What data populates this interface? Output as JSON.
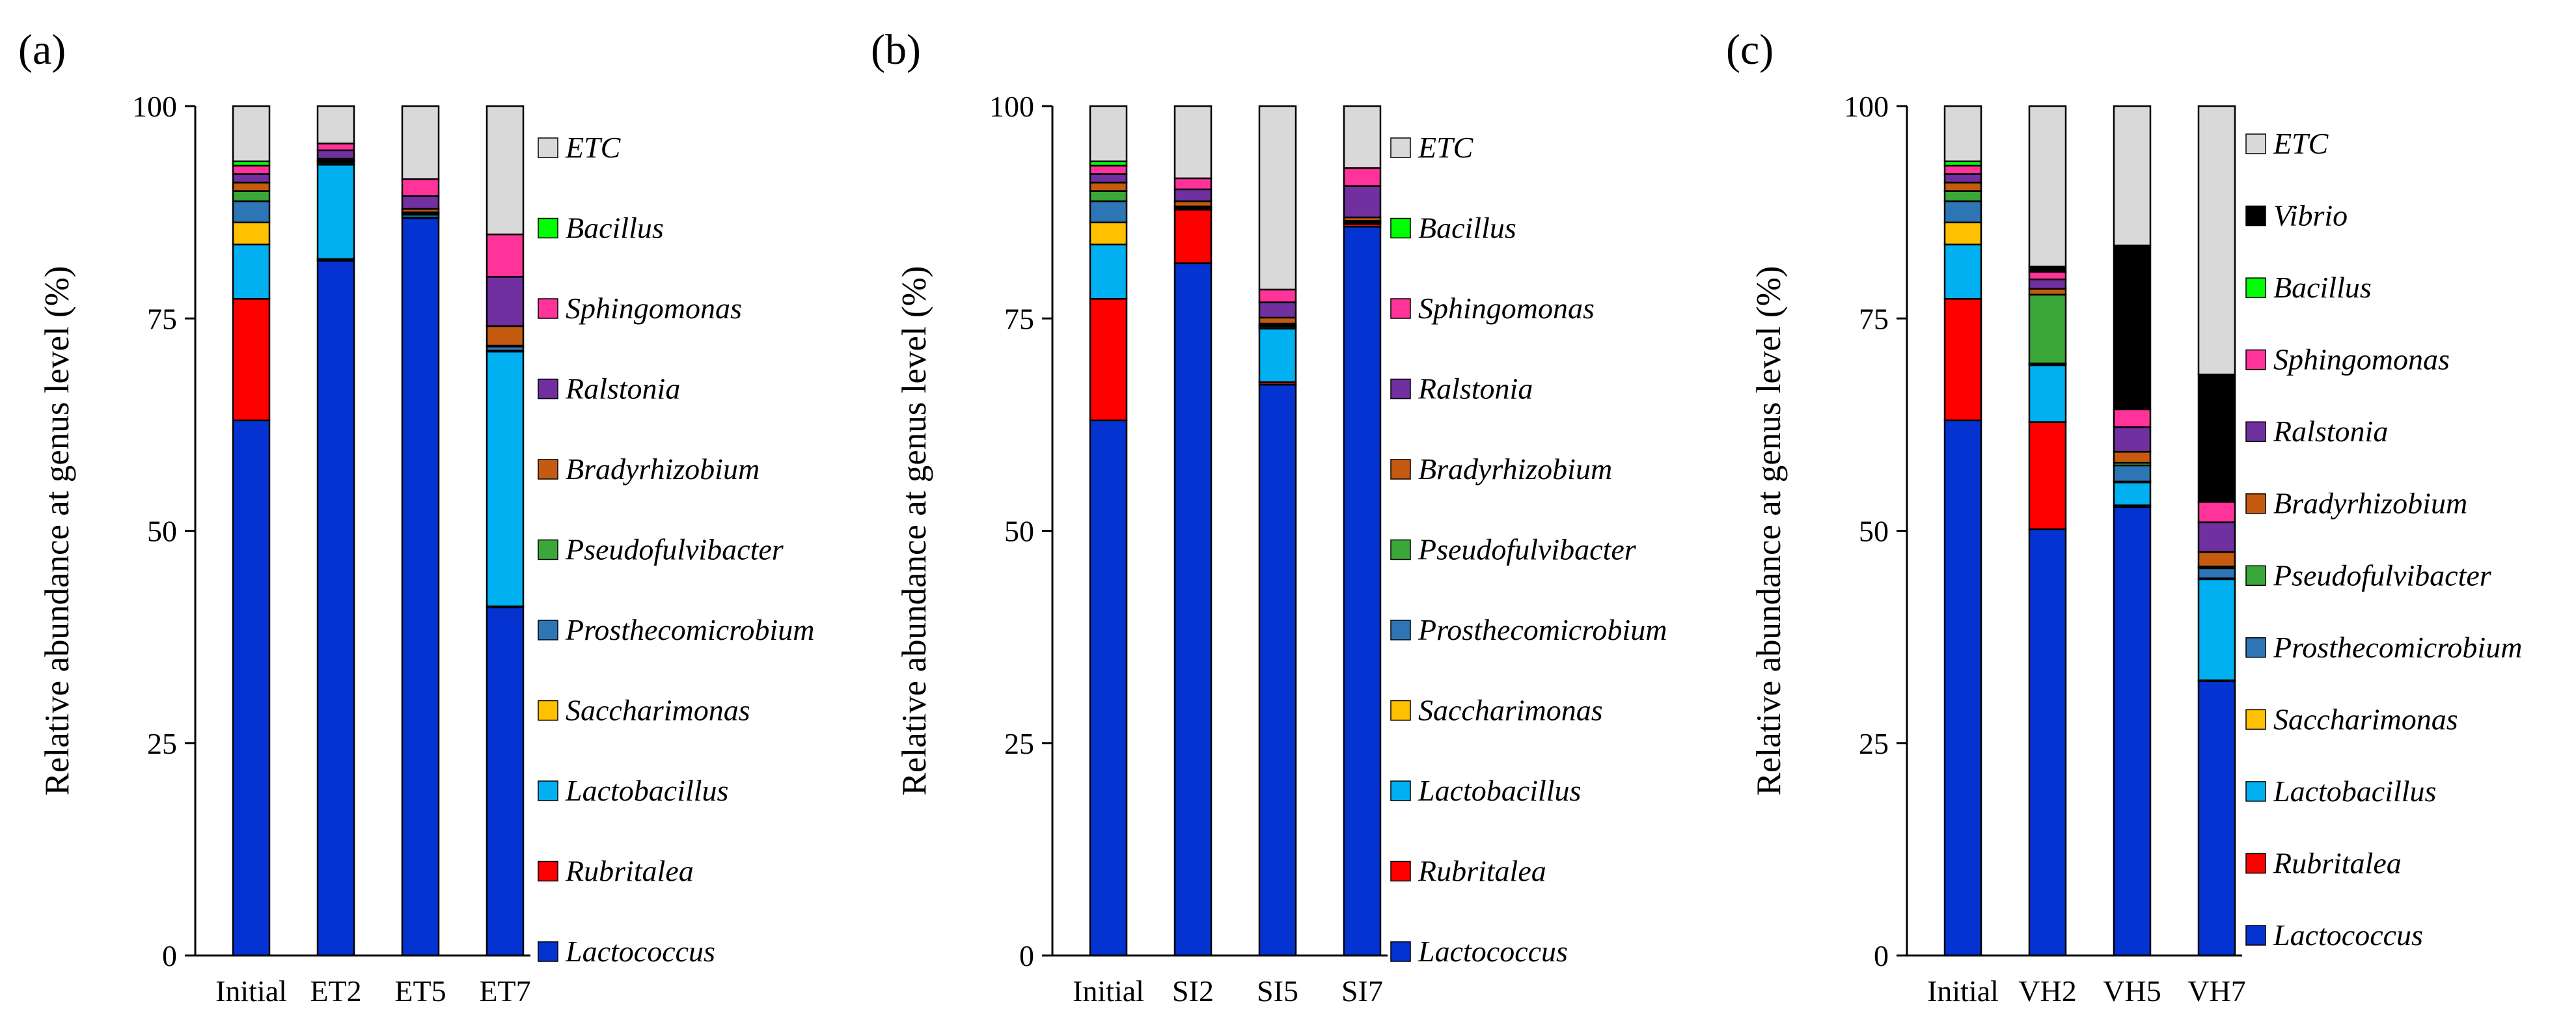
{
  "figure": "Relative abundance at genus level stacked bar charts",
  "colors": {
    "Lactococcus": "#0433d1",
    "Rubritalea": "#ff0000",
    "Lactobacillus": "#00b0f0",
    "Saccharimonas": "#ffc000",
    "Prosthecomicrobium": "#2e75b6",
    "Pseudofulvibacter": "#3aa838",
    "Bradyrhizobium": "#c55a11",
    "Ralstonia": "#7030a0",
    "Sphingomonas": "#ff3399",
    "Bacillus": "#00ff00",
    "Vibrio": "#000000",
    "ETC": "#d9d9d9"
  },
  "chart_data": [
    {
      "type": "bar",
      "stacked": true,
      "panel_label": "(a)",
      "title": "",
      "xlabel": "",
      "ylabel": "Relative abundance at genus level (%)",
      "ylim": [
        0,
        100
      ],
      "yticks": [
        "0",
        "25",
        "50",
        "75",
        "100"
      ],
      "categories": [
        "Initial",
        "ET2",
        "ET5",
        "ET7"
      ],
      "legend_title": "",
      "legend": [
        "ETC",
        "Bacillus",
        "Sphingomonas",
        "Ralstonia",
        "Bradyrhizobium",
        "Pseudofulvibacter",
        "Prosthecomicrobium",
        "Saccharimonas",
        "Lactobacillus",
        "Rubritalea",
        "Lactococcus"
      ],
      "series": [
        {
          "name": "Lactococcus",
          "values": [
            63.0,
            81.8,
            86.8,
            41.0
          ]
        },
        {
          "name": "Rubritalea",
          "values": [
            14.3,
            0.2,
            0.1,
            0.1
          ]
        },
        {
          "name": "Lactobacillus",
          "values": [
            6.4,
            11.1,
            0.3,
            30.0
          ]
        },
        {
          "name": "Saccharimonas",
          "values": [
            2.6,
            0.2,
            0.1,
            0.1
          ]
        },
        {
          "name": "Prosthecomicrobium",
          "values": [
            2.5,
            0.2,
            0.1,
            0.5
          ]
        },
        {
          "name": "Pseudofulvibacter",
          "values": [
            1.2,
            0.1,
            0.1,
            0.1
          ]
        },
        {
          "name": "Bradyrhizobium",
          "values": [
            1.0,
            0.2,
            0.4,
            2.3
          ]
        },
        {
          "name": "Ralstonia",
          "values": [
            1.0,
            1.0,
            1.5,
            5.8
          ]
        },
        {
          "name": "Sphingomonas",
          "values": [
            1.0,
            0.8,
            2.0,
            5.0
          ]
        },
        {
          "name": "Bacillus",
          "values": [
            0.5,
            0.0,
            0.0,
            0.0
          ]
        },
        {
          "name": "ETC",
          "values": [
            6.5,
            4.4,
            8.6,
            15.1
          ]
        }
      ]
    },
    {
      "type": "bar",
      "stacked": true,
      "panel_label": "(b)",
      "title": "",
      "xlabel": "",
      "ylabel": "Relative abundance at genus level (%)",
      "ylim": [
        0,
        100
      ],
      "yticks": [
        "0",
        "25",
        "50",
        "75",
        "100"
      ],
      "categories": [
        "Initial",
        "SI2",
        "SI5",
        "SI7"
      ],
      "legend_title": "",
      "legend": [
        "ETC",
        "Bacillus",
        "Sphingomonas",
        "Ralstonia",
        "Bradyrhizobium",
        "Pseudofulvibacter",
        "Prosthecomicrobium",
        "Saccharimonas",
        "Lactobacillus",
        "Rubritalea",
        "Lactococcus"
      ],
      "series": [
        {
          "name": "Lactococcus",
          "values": [
            63.0,
            81.5,
            67.2,
            85.8
          ]
        },
        {
          "name": "Rubritalea",
          "values": [
            14.3,
            6.3,
            0.3,
            0.3
          ]
        },
        {
          "name": "Lactobacillus",
          "values": [
            6.4,
            0.1,
            6.3,
            0.1
          ]
        },
        {
          "name": "Saccharimonas",
          "values": [
            2.6,
            0.1,
            0.2,
            0.1
          ]
        },
        {
          "name": "Prosthecomicrobium",
          "values": [
            2.5,
            0.1,
            0.2,
            0.1
          ]
        },
        {
          "name": "Pseudofulvibacter",
          "values": [
            1.2,
            0.1,
            0.2,
            0.1
          ]
        },
        {
          "name": "Bradyrhizobium",
          "values": [
            1.0,
            0.6,
            0.7,
            0.4
          ]
        },
        {
          "name": "Ralstonia",
          "values": [
            1.0,
            1.4,
            1.8,
            3.7
          ]
        },
        {
          "name": "Sphingomonas",
          "values": [
            1.0,
            1.3,
            1.5,
            2.1
          ]
        },
        {
          "name": "Bacillus",
          "values": [
            0.5,
            0.0,
            0.0,
            0.0
          ]
        },
        {
          "name": "ETC",
          "values": [
            6.5,
            8.5,
            21.6,
            7.3
          ]
        }
      ]
    },
    {
      "type": "bar",
      "stacked": true,
      "panel_label": "(c)",
      "title": "",
      "xlabel": "",
      "ylabel": "Relative abundance at genus level (%)",
      "ylim": [
        0,
        100
      ],
      "yticks": [
        "0",
        "25",
        "50",
        "75",
        "100"
      ],
      "categories": [
        "Initial",
        "VH2",
        "VH5",
        "VH7"
      ],
      "legend_title": "",
      "legend": [
        "ETC",
        "Vibrio",
        "Bacillus",
        "Sphingomonas",
        "Ralstonia",
        "Bradyrhizobium",
        "Pseudofulvibacter",
        "Prosthecomicrobium",
        "Saccharimonas",
        "Lactobacillus",
        "Rubritalea",
        "Lactococcus"
      ],
      "series": [
        {
          "name": "Lactococcus",
          "values": [
            63.0,
            50.2,
            52.8,
            32.3
          ]
        },
        {
          "name": "Rubritalea",
          "values": [
            14.3,
            12.6,
            0.2,
            0.1
          ]
        },
        {
          "name": "Lactobacillus",
          "values": [
            6.4,
            6.7,
            2.7,
            11.9
          ]
        },
        {
          "name": "Saccharimonas",
          "values": [
            2.6,
            0.1,
            0.1,
            0.1
          ]
        },
        {
          "name": "Prosthecomicrobium",
          "values": [
            2.5,
            0.1,
            1.9,
            1.2
          ]
        },
        {
          "name": "Pseudofulvibacter",
          "values": [
            1.2,
            8.1,
            0.3,
            0.2
          ]
        },
        {
          "name": "Bradyrhizobium",
          "values": [
            1.0,
            0.7,
            1.3,
            1.7
          ]
        },
        {
          "name": "Ralstonia",
          "values": [
            1.0,
            1.1,
            2.9,
            3.5
          ]
        },
        {
          "name": "Sphingomonas",
          "values": [
            1.0,
            0.9,
            2.1,
            2.4
          ]
        },
        {
          "name": "Bacillus",
          "values": [
            0.5,
            0.0,
            0.0,
            0.0
          ]
        },
        {
          "name": "Vibrio",
          "values": [
            0.0,
            0.6,
            19.3,
            15.0
          ]
        },
        {
          "name": "ETC",
          "values": [
            6.5,
            18.9,
            16.4,
            31.6
          ]
        }
      ]
    }
  ]
}
